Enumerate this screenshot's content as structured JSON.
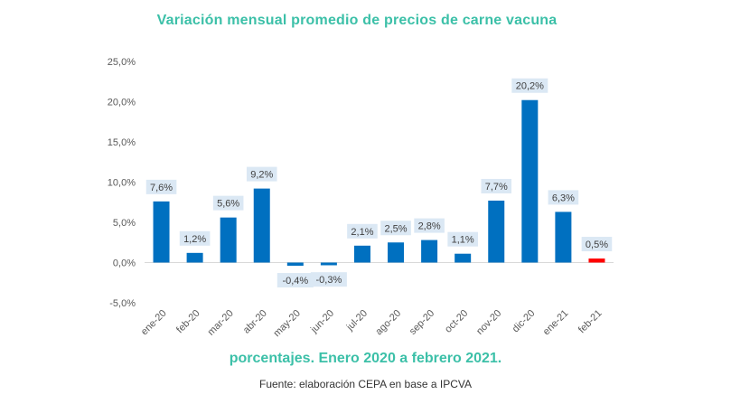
{
  "chart_data": {
    "type": "bar",
    "title": "Variación mensual promedio de precios de carne vacuna",
    "subtitle": "porcentajes. Enero 2020 a febrero 2021.",
    "source": "Fuente: elaboración CEPA en base a IPCVA",
    "categories": [
      "ene-20",
      "feb-20",
      "mar-20",
      "abr-20",
      "may-20",
      "jun-20",
      "jul-20",
      "ago-20",
      "sep-20",
      "oct-20",
      "nov-20",
      "dic-20",
      "ene-21",
      "feb-21"
    ],
    "values": [
      7.6,
      1.2,
      5.6,
      9.2,
      -0.4,
      -0.3,
      2.1,
      2.5,
      2.8,
      1.1,
      7.7,
      20.2,
      6.3,
      0.5
    ],
    "data_labels": [
      "7,6%",
      "1,2%",
      "5,6%",
      "9,2%",
      "-0,4%",
      "-0,3%",
      "2,1%",
      "2,5%",
      "2,8%",
      "1,1%",
      "7,7%",
      "20,2%",
      "6,3%",
      "0,5%"
    ],
    "ylim": [
      -5,
      25
    ],
    "yticks": [
      -5,
      0,
      5,
      10,
      15,
      20,
      25
    ],
    "ytick_labels": [
      "-5,0%",
      "0,0%",
      "5,0%",
      "10,0%",
      "15,0%",
      "20,0%",
      "25,0%"
    ],
    "xlabel": "",
    "ylabel": "",
    "colors": {
      "bar": "#0070c0",
      "highlight": "#ff0000",
      "label_bg": "#dbe8f4",
      "title": "#3cc0a8"
    },
    "highlight_index": 13
  }
}
